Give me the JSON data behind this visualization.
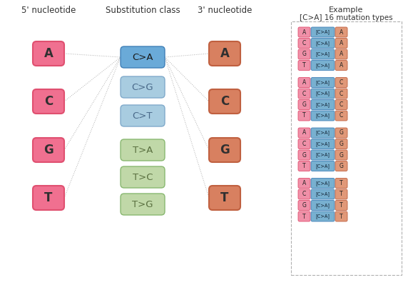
{
  "bg_color": "#ffffff",
  "header_5prime": "5' nucleotide",
  "header_subst": "Substitution class",
  "header_3prime": "3' nucleotide",
  "header_example_line1": "Example",
  "header_example_line2": "[C>A] 16 mutation types",
  "nucleotides_5prime": [
    "A",
    "C",
    "G",
    "T"
  ],
  "nucleotides_3prime": [
    "A",
    "C",
    "G",
    "T"
  ],
  "subst_classes": [
    "C>A",
    "C>G",
    "C>T",
    "T>A",
    "T>C",
    "T>G"
  ],
  "color_pink_border": "#e05070",
  "color_pink_fill": "#f07090",
  "color_orange_border": "#c06040",
  "color_orange_fill": "#d88060",
  "color_blue_dark_fill": "#6aaad8",
  "color_blue_dark_border": "#4080b8",
  "color_blue_light_fill": "#a8cce0",
  "color_blue_light_border": "#80aacb",
  "color_green_fill": "#c0d8a8",
  "color_green_border": "#88b870",
  "color_mini_pink": "#f090a8",
  "color_mini_blue": "#78b0d0",
  "color_mini_orange": "#e09878",
  "panel_border": "#b0b0b0",
  "line_color": "#b0b0b0"
}
